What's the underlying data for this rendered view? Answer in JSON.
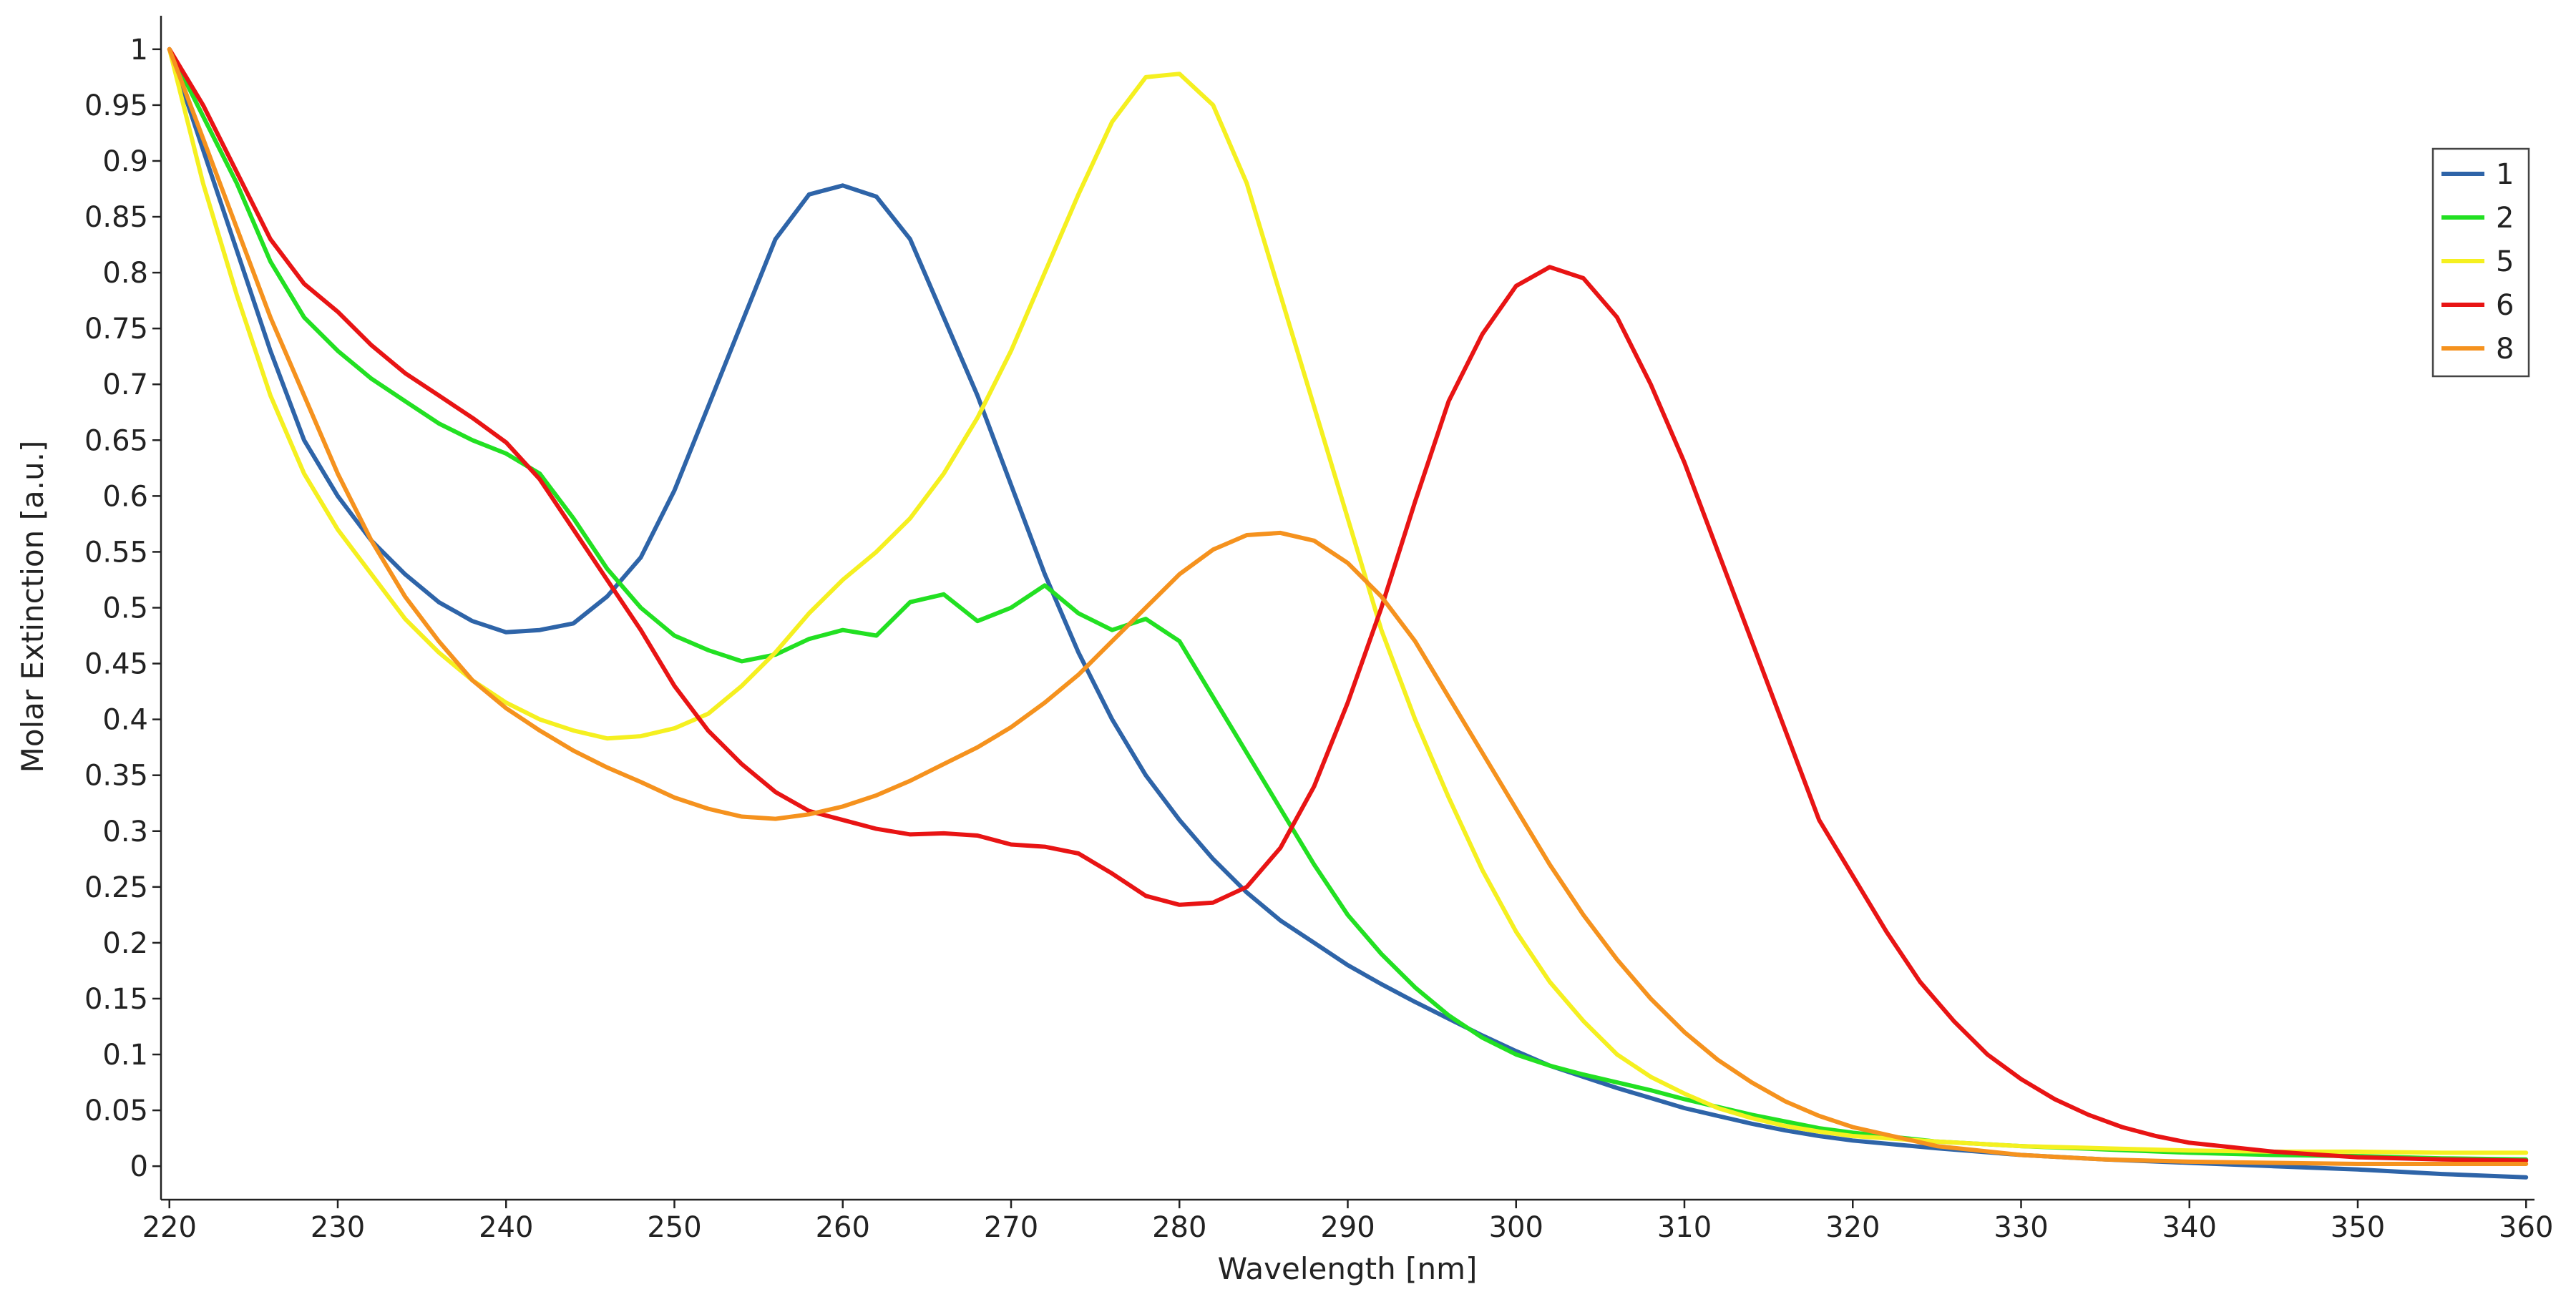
{
  "chart_data": {
    "type": "line",
    "title": "",
    "xlabel": "Wavelength [nm]",
    "ylabel": "Molar Extinction [a.u.]",
    "xlim": [
      219.5,
      360.5
    ],
    "ylim": [
      -0.03,
      1.03
    ],
    "x_ticks": [
      220,
      230,
      240,
      250,
      260,
      270,
      280,
      290,
      300,
      310,
      320,
      330,
      340,
      350,
      360
    ],
    "x_tick_labels": [
      "220",
      "230",
      "240",
      "250",
      "260",
      "270",
      "280",
      "290",
      "300",
      "310",
      "320",
      "330",
      "340",
      "350",
      "360"
    ],
    "y_ticks": [
      0,
      0.05,
      0.1,
      0.15,
      0.2,
      0.25,
      0.3,
      0.35,
      0.4,
      0.45,
      0.5,
      0.55,
      0.6,
      0.65,
      0.7,
      0.75,
      0.8,
      0.85,
      0.9,
      0.95,
      1
    ],
    "y_tick_labels": [
      "0",
      "0.05",
      "0.1",
      "0.15",
      "0.2",
      "0.25",
      "0.3",
      "0.35",
      "0.4",
      "0.45",
      "0.5",
      "0.55",
      "0.6",
      "0.65",
      "0.7",
      "0.75",
      "0.8",
      "0.85",
      "0.9",
      "0.95",
      "1"
    ],
    "grid": false,
    "legend_position": "top-right",
    "series": [
      {
        "name": "1",
        "color": "#2e64a8",
        "x": [
          220,
          222,
          224,
          226,
          228,
          230,
          232,
          234,
          236,
          238,
          240,
          242,
          244,
          246,
          248,
          250,
          252,
          254,
          256,
          258,
          260,
          262,
          264,
          266,
          268,
          270,
          272,
          274,
          276,
          278,
          280,
          282,
          284,
          286,
          288,
          290,
          292,
          294,
          296,
          298,
          300,
          302,
          304,
          306,
          308,
          310,
          312,
          314,
          316,
          318,
          320,
          325,
          330,
          335,
          340,
          345,
          350,
          355,
          360
        ],
        "values": [
          1.0,
          0.91,
          0.82,
          0.73,
          0.65,
          0.6,
          0.56,
          0.53,
          0.505,
          0.488,
          0.478,
          0.48,
          0.486,
          0.51,
          0.545,
          0.605,
          0.68,
          0.755,
          0.83,
          0.87,
          0.878,
          0.868,
          0.83,
          0.76,
          0.69,
          0.61,
          0.53,
          0.46,
          0.4,
          0.35,
          0.31,
          0.275,
          0.245,
          0.22,
          0.2,
          0.18,
          0.163,
          0.147,
          0.132,
          0.117,
          0.103,
          0.09,
          0.08,
          0.07,
          0.061,
          0.052,
          0.045,
          0.038,
          0.032,
          0.027,
          0.023,
          0.016,
          0.01,
          0.006,
          0.003,
          0.0,
          -0.003,
          -0.007,
          -0.01
        ]
      },
      {
        "name": "2",
        "color": "#22e022",
        "x": [
          220,
          222,
          224,
          226,
          228,
          230,
          232,
          234,
          236,
          238,
          240,
          242,
          244,
          246,
          248,
          250,
          252,
          254,
          256,
          258,
          260,
          262,
          264,
          266,
          268,
          270,
          272,
          274,
          276,
          278,
          280,
          282,
          284,
          286,
          288,
          290,
          292,
          294,
          296,
          298,
          300,
          302,
          304,
          306,
          308,
          310,
          312,
          314,
          316,
          318,
          320,
          325,
          330,
          335,
          340,
          345,
          350,
          355,
          360
        ],
        "values": [
          1.0,
          0.94,
          0.88,
          0.81,
          0.76,
          0.73,
          0.705,
          0.685,
          0.665,
          0.65,
          0.638,
          0.62,
          0.58,
          0.535,
          0.5,
          0.475,
          0.462,
          0.452,
          0.458,
          0.472,
          0.48,
          0.475,
          0.505,
          0.512,
          0.488,
          0.5,
          0.52,
          0.495,
          0.48,
          0.49,
          0.47,
          0.42,
          0.37,
          0.32,
          0.27,
          0.225,
          0.19,
          0.16,
          0.135,
          0.115,
          0.1,
          0.09,
          0.082,
          0.075,
          0.068,
          0.06,
          0.053,
          0.046,
          0.04,
          0.034,
          0.03,
          0.022,
          0.018,
          0.015,
          0.012,
          0.01,
          0.009,
          0.007,
          0.006
        ]
      },
      {
        "name": "5",
        "color": "#f5f020",
        "x": [
          220,
          222,
          224,
          226,
          228,
          230,
          232,
          234,
          236,
          238,
          240,
          242,
          244,
          246,
          248,
          250,
          252,
          254,
          256,
          258,
          260,
          262,
          264,
          266,
          268,
          270,
          272,
          274,
          276,
          278,
          280,
          282,
          284,
          286,
          288,
          290,
          292,
          294,
          296,
          298,
          300,
          302,
          304,
          306,
          308,
          310,
          312,
          314,
          316,
          318,
          320,
          325,
          330,
          335,
          340,
          345,
          350,
          355,
          360
        ],
        "values": [
          1.0,
          0.88,
          0.78,
          0.69,
          0.62,
          0.57,
          0.53,
          0.49,
          0.46,
          0.435,
          0.415,
          0.4,
          0.39,
          0.383,
          0.385,
          0.392,
          0.405,
          0.43,
          0.46,
          0.495,
          0.525,
          0.55,
          0.58,
          0.62,
          0.67,
          0.73,
          0.8,
          0.87,
          0.935,
          0.975,
          0.978,
          0.95,
          0.88,
          0.78,
          0.68,
          0.58,
          0.48,
          0.4,
          0.33,
          0.265,
          0.21,
          0.165,
          0.13,
          0.1,
          0.08,
          0.065,
          0.052,
          0.043,
          0.036,
          0.031,
          0.027,
          0.022,
          0.018,
          0.016,
          0.014,
          0.013,
          0.013,
          0.012,
          0.012
        ]
      },
      {
        "name": "6",
        "color": "#e81414",
        "x": [
          220,
          222,
          224,
          226,
          228,
          230,
          232,
          234,
          236,
          238,
          240,
          242,
          244,
          246,
          248,
          250,
          252,
          254,
          256,
          258,
          260,
          262,
          264,
          266,
          268,
          270,
          272,
          274,
          276,
          278,
          280,
          282,
          284,
          286,
          288,
          290,
          292,
          294,
          296,
          298,
          300,
          302,
          304,
          306,
          308,
          310,
          312,
          314,
          316,
          318,
          320,
          322,
          324,
          326,
          328,
          330,
          332,
          334,
          336,
          338,
          340,
          345,
          350,
          355,
          360
        ],
        "values": [
          1.0,
          0.95,
          0.89,
          0.83,
          0.79,
          0.765,
          0.735,
          0.71,
          0.69,
          0.67,
          0.648,
          0.615,
          0.57,
          0.525,
          0.48,
          0.43,
          0.39,
          0.36,
          0.335,
          0.318,
          0.31,
          0.302,
          0.297,
          0.298,
          0.296,
          0.288,
          0.286,
          0.28,
          0.262,
          0.242,
          0.234,
          0.236,
          0.25,
          0.285,
          0.34,
          0.415,
          0.5,
          0.595,
          0.685,
          0.745,
          0.788,
          0.805,
          0.795,
          0.76,
          0.7,
          0.63,
          0.55,
          0.47,
          0.39,
          0.31,
          0.26,
          0.21,
          0.165,
          0.13,
          0.1,
          0.078,
          0.06,
          0.046,
          0.035,
          0.027,
          0.021,
          0.013,
          0.008,
          0.006,
          0.005
        ]
      },
      {
        "name": "8",
        "color": "#f5921e",
        "x": [
          220,
          222,
          224,
          226,
          228,
          230,
          232,
          234,
          236,
          238,
          240,
          242,
          244,
          246,
          248,
          250,
          252,
          254,
          256,
          258,
          260,
          262,
          264,
          266,
          268,
          270,
          272,
          274,
          276,
          278,
          280,
          282,
          284,
          286,
          288,
          290,
          292,
          294,
          296,
          298,
          300,
          302,
          304,
          306,
          308,
          310,
          312,
          314,
          316,
          318,
          320,
          325,
          330,
          335,
          340,
          345,
          350,
          355,
          360
        ],
        "values": [
          1.0,
          0.92,
          0.84,
          0.76,
          0.69,
          0.62,
          0.56,
          0.51,
          0.47,
          0.435,
          0.41,
          0.39,
          0.372,
          0.357,
          0.344,
          0.33,
          0.32,
          0.313,
          0.311,
          0.315,
          0.322,
          0.332,
          0.345,
          0.36,
          0.375,
          0.393,
          0.415,
          0.44,
          0.47,
          0.5,
          0.53,
          0.552,
          0.565,
          0.567,
          0.56,
          0.54,
          0.51,
          0.47,
          0.42,
          0.37,
          0.32,
          0.27,
          0.225,
          0.185,
          0.15,
          0.12,
          0.095,
          0.075,
          0.058,
          0.045,
          0.035,
          0.018,
          0.01,
          0.006,
          0.004,
          0.003,
          0.002,
          0.002,
          0.002
        ]
      }
    ]
  }
}
